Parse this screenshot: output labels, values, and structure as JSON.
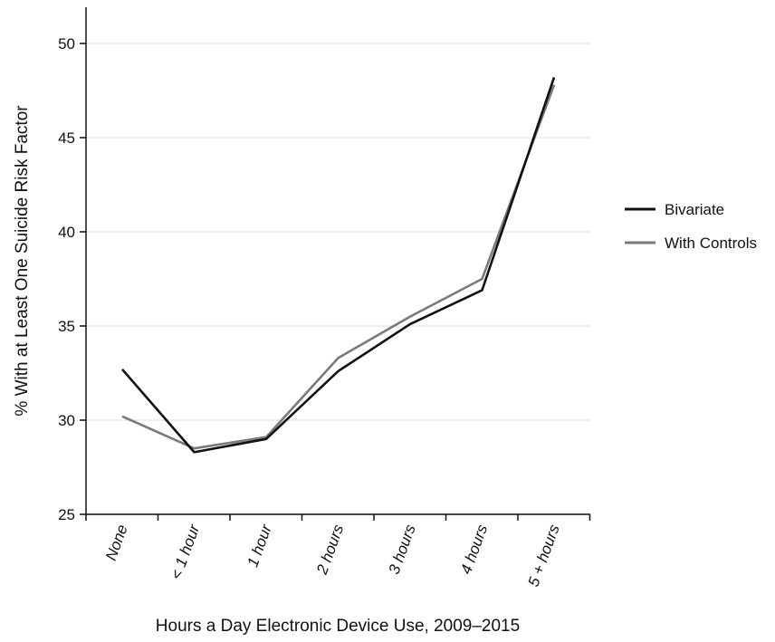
{
  "chart_data": {
    "type": "line",
    "title": "",
    "xlabel": "Hours a Day Electronic Device Use, 2009–2015",
    "ylabel": "% With at Least One Suicide Risk Factor",
    "categories": [
      "None",
      "< 1 hour",
      "1 hour",
      "2 hours",
      "3 hours",
      "4 hours",
      "5 + hours"
    ],
    "ylim": [
      25,
      52
    ],
    "yticks": [
      25,
      30,
      35,
      40,
      45,
      50
    ],
    "grid": true,
    "legend_position": "right",
    "series": [
      {
        "name": "Bivariate",
        "color": "#111111",
        "values": [
          32.7,
          28.3,
          29.0,
          32.6,
          35.1,
          36.9,
          48.2
        ]
      },
      {
        "name": "With Controls",
        "color": "#7a7a7a",
        "values": [
          30.2,
          28.5,
          29.1,
          33.3,
          35.5,
          37.5,
          47.8
        ]
      }
    ]
  }
}
